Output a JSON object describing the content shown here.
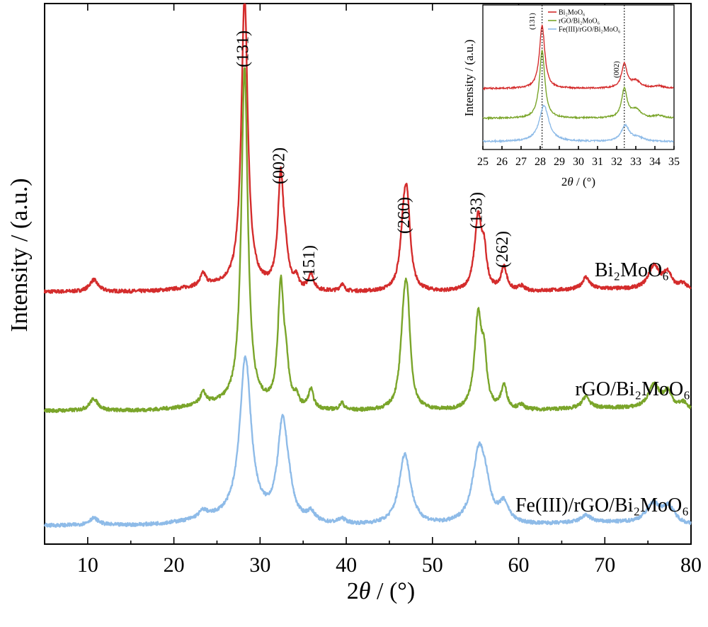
{
  "chart_data": [
    {
      "type": "line",
      "xlabel": "2θ / (°)",
      "ylabel": "Intensity / (a.u.)",
      "xlim": [
        5,
        80
      ],
      "x_ticks": [
        10,
        20,
        30,
        40,
        50,
        60,
        70,
        80
      ],
      "y_ticks": "none",
      "grid": false,
      "colors": {
        "Bi2MoO6": "#d42c2c",
        "rGO/Bi2MoO6": "#7aa52a",
        "Fe(III)/rGO/Bi2MoO6": "#8ebbe8"
      },
      "series": [
        {
          "name": "Bi2MoO6",
          "label_html": "Bi₂MoO₆",
          "baseline": 0,
          "peaks": [
            [
              10.7,
              0.5,
              0.6
            ],
            [
              23.4,
              0.5,
              0.4
            ],
            [
              28.2,
              12.2,
              0.45
            ],
            [
              32.4,
              4.7,
              0.4
            ],
            [
              33.0,
              0.9,
              0.4
            ],
            [
              34.2,
              0.4,
              0.3
            ],
            [
              35.9,
              0.7,
              0.35
            ],
            [
              39.5,
              0.3,
              0.3
            ],
            [
              46.7,
              2.8,
              0.5
            ],
            [
              47.1,
              2.6,
              0.4
            ],
            [
              55.3,
              3.1,
              0.5
            ],
            [
              56.0,
              1.3,
              0.35
            ],
            [
              58.3,
              1.0,
              0.4
            ],
            [
              60.3,
              0.2,
              0.4
            ],
            [
              67.8,
              0.5,
              0.5
            ],
            [
              75.7,
              1.0,
              0.8
            ],
            [
              77.3,
              0.7,
              0.6
            ],
            [
              79.1,
              0.3,
              0.6
            ]
          ]
        },
        {
          "name": "rGO/Bi2MoO6",
          "label_html": "rGO/Bi₂MoO₆",
          "baseline": 0,
          "peaks": [
            [
              10.7,
              0.5,
              0.6
            ],
            [
              23.4,
              0.5,
              0.4
            ],
            [
              28.2,
              14.2,
              0.45
            ],
            [
              32.4,
              5.0,
              0.4
            ],
            [
              33.0,
              1.4,
              0.4
            ],
            [
              34.2,
              0.4,
              0.3
            ],
            [
              35.9,
              0.8,
              0.35
            ],
            [
              39.5,
              0.3,
              0.3
            ],
            [
              46.7,
              3.4,
              0.5
            ],
            [
              47.1,
              3.2,
              0.4
            ],
            [
              55.3,
              3.9,
              0.5
            ],
            [
              56.0,
              1.8,
              0.35
            ],
            [
              58.3,
              1.0,
              0.4
            ],
            [
              60.3,
              0.2,
              0.4
            ],
            [
              67.8,
              0.5,
              0.5
            ],
            [
              75.7,
              1.0,
              0.8
            ],
            [
              77.3,
              0.7,
              0.6
            ],
            [
              79.1,
              0.3,
              0.6
            ]
          ]
        },
        {
          "name": "Fe(III)/rGO/Bi2MoO6",
          "label_html": "Fe(III)/rGO/Bi₂MoO₆",
          "baseline": 0,
          "peaks": [
            [
              10.7,
              0.3,
              0.7
            ],
            [
              23.4,
              0.3,
              0.6
            ],
            [
              28.3,
              6.8,
              0.8
            ],
            [
              32.6,
              4.0,
              0.7
            ],
            [
              33.3,
              0.7,
              0.6
            ],
            [
              35.9,
              0.4,
              0.6
            ],
            [
              39.5,
              0.2,
              0.6
            ],
            [
              46.8,
              3.0,
              0.8
            ],
            [
              55.4,
              3.1,
              0.9
            ],
            [
              56.2,
              0.8,
              0.6
            ],
            [
              58.3,
              0.8,
              0.7
            ],
            [
              67.8,
              0.3,
              0.7
            ],
            [
              75.6,
              0.8,
              1.0
            ],
            [
              77.4,
              0.7,
              0.9
            ]
          ]
        }
      ],
      "peak_labels": [
        {
          "text": "(131)",
          "x": 28.2
        },
        {
          "text": "(002)",
          "x": 32.4
        },
        {
          "text": "(151)",
          "x": 35.9
        },
        {
          "text": "(260)",
          "x": 46.9
        },
        {
          "text": "(133)",
          "x": 55.3
        },
        {
          "text": "(262)",
          "x": 58.3
        }
      ]
    },
    {
      "type": "line",
      "role": "inset",
      "xlabel": "2θ / (°)",
      "ylabel": "Intensity / (a.u.)",
      "xlim": [
        25,
        35
      ],
      "x_ticks": [
        25,
        26,
        27,
        28,
        29,
        30,
        31,
        32,
        33,
        34,
        35
      ],
      "grid": false,
      "legend": "top",
      "reference_lines_x": [
        28.1,
        32.4
      ],
      "peak_labels": [
        {
          "text": "(131)",
          "x": 28.1
        },
        {
          "text": "(002)",
          "x": 32.4
        }
      ],
      "legend_entries": [
        {
          "label": "Bi₂MoO₆",
          "color": "#d42c2c"
        },
        {
          "label": "rGO/Bi₂MoO₆",
          "color": "#7aa52a"
        },
        {
          "label": "Fe(III)/rGO/Bi₂MoO₆",
          "color": "#8ebbe8"
        }
      ]
    }
  ]
}
